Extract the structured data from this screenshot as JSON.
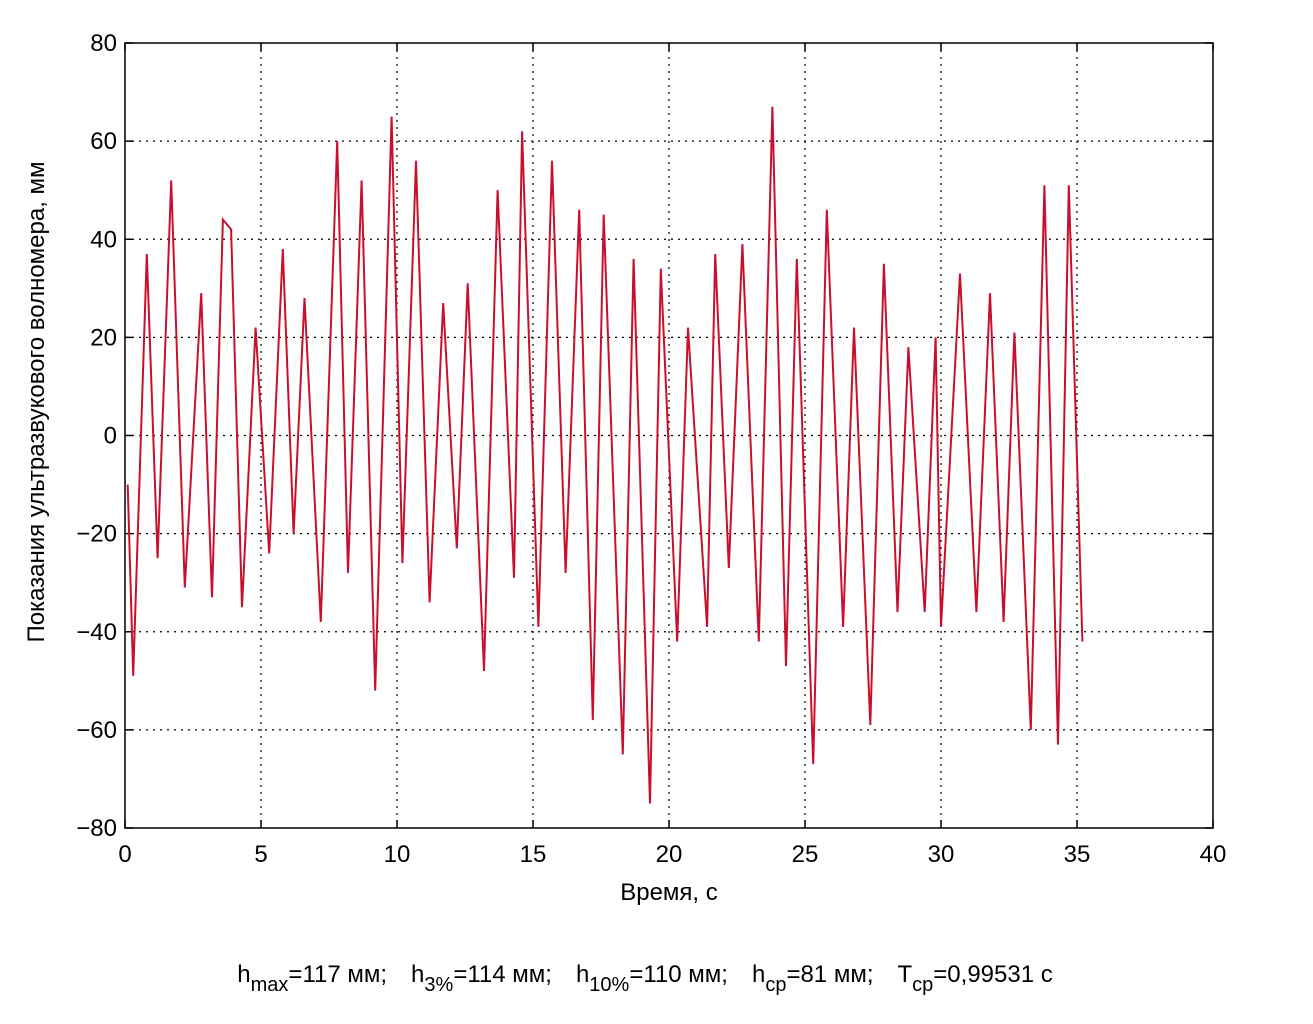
{
  "chart_data": {
    "type": "line",
    "xlabel": "Время, с",
    "ylabel": "Показания ультразвукового волномера, мм",
    "x": [
      0.1,
      0.3,
      0.8,
      1.2,
      1.7,
      2.2,
      2.8,
      3.2,
      3.6,
      3.9,
      4.3,
      4.8,
      5.3,
      5.8,
      6.2,
      6.6,
      7.2,
      7.8,
      8.2,
      8.7,
      9.2,
      9.8,
      10.2,
      10.7,
      11.2,
      11.7,
      12.2,
      12.6,
      13.2,
      13.7,
      14.3,
      14.6,
      15.2,
      15.7,
      16.2,
      16.7,
      17.2,
      17.6,
      18.3,
      18.7,
      19.3,
      19.7,
      20.3,
      20.7,
      21.4,
      21.7,
      22.2,
      22.7,
      23.3,
      23.8,
      24.3,
      24.7,
      25.3,
      25.8,
      26.4,
      26.8,
      27.4,
      27.9,
      28.4,
      28.8,
      29.4,
      29.8,
      30.0,
      30.7,
      31.3,
      31.8,
      32.3,
      32.7,
      33.3,
      33.8,
      34.3,
      34.7,
      35.2
    ],
    "values": [
      -10,
      -49,
      37,
      -25,
      52,
      -31,
      29,
      -33,
      44,
      42,
      -35,
      22,
      -24,
      38,
      -20,
      28,
      -38,
      60,
      -28,
      52,
      -52,
      65,
      -26,
      56,
      -34,
      27,
      -23,
      31,
      -48,
      50,
      -29,
      62,
      -39,
      56,
      -28,
      46,
      -58,
      45,
      -65,
      36,
      -75,
      34,
      -42,
      22,
      -39,
      37,
      -27,
      39,
      -42,
      67,
      -47,
      36,
      -67,
      46,
      -39,
      22,
      -59,
      35,
      -36,
      18,
      -36,
      20,
      -39,
      33,
      -36,
      29,
      -38,
      21,
      -60,
      51,
      -63,
      51,
      -42
    ],
    "color": "#c8102e",
    "xlim": [
      0,
      40
    ],
    "xticks": [
      0,
      5,
      10,
      15,
      20,
      25,
      30,
      35,
      40
    ],
    "ylim": [
      -80,
      80
    ],
    "yticks": [
      {
        "value": -80,
        "label": "−80"
      },
      {
        "value": -60,
        "label": "−60"
      },
      {
        "value": -40,
        "label": "−40"
      },
      {
        "value": -20,
        "label": "−20"
      },
      0,
      20,
      40,
      60,
      80
    ],
    "grid": true,
    "footnote": [
      {
        "base": "h",
        "sub": "max",
        "rest": "=117 мм;"
      },
      {
        "base": "h",
        "sub": "3%",
        "rest": "=114 мм;"
      },
      {
        "base": "h",
        "sub": "10%",
        "rest": "=110 мм;"
      },
      {
        "base": "h",
        "sub": "ср",
        "rest": "=81 мм;"
      },
      {
        "base": "T",
        "sub": "ср",
        "rest": "=0,99531 с"
      }
    ]
  }
}
